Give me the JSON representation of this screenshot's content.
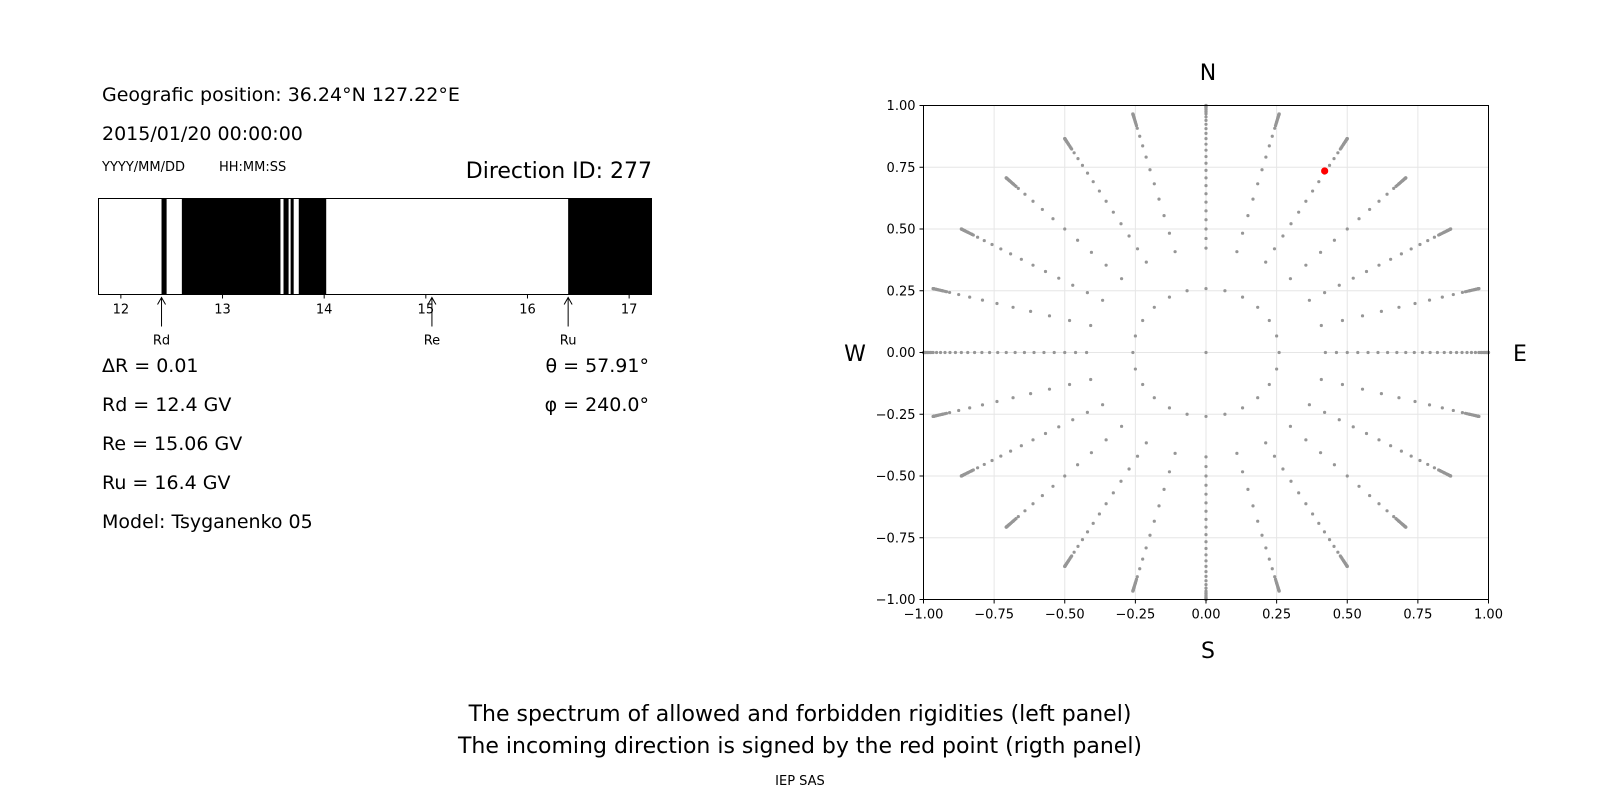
{
  "info": {
    "position": "Geografic position: 36.24°N 127.22°E",
    "datetime": "2015/01/20 00:00:00",
    "date_format": "YYYY/MM/DD",
    "time_format": "HH:MM:SS",
    "direction_id": "Direction ID: 277",
    "delta_r": "ΔR = 0.01",
    "rd": "Rd = 12.4 GV",
    "re": "Re = 15.06 GV",
    "ru": "Ru = 16.4 GV",
    "model": "Model: Tsyganenko 05",
    "theta": "θ = 57.91°",
    "phi": "φ = 240.0°"
  },
  "compass": {
    "n": "N",
    "s": "S",
    "e": "E",
    "w": "W"
  },
  "captions": {
    "line1": "The spectrum of allowed and forbidden rigidities (left panel)",
    "line2": "The incoming direction is signed by the red point (rigth panel)",
    "footer": "IEP SAS"
  },
  "chart_data": [
    {
      "type": "bar",
      "description_kind": "rigidity spectrum",
      "xlim": [
        11.78,
        17.22
      ],
      "xticks": [
        12,
        13,
        14,
        15,
        16,
        17
      ],
      "forbidden_bands": [
        [
          12.4,
          12.45
        ],
        [
          12.6,
          13.57
        ],
        [
          13.6,
          13.65
        ],
        [
          13.67,
          13.7
        ],
        [
          13.75,
          14.02
        ],
        [
          16.4,
          17.22
        ]
      ],
      "markers": [
        {
          "label": "Rd",
          "x": 12.4
        },
        {
          "label": "Re",
          "x": 15.06
        },
        {
          "label": "Ru",
          "x": 16.4
        }
      ],
      "colors": {
        "forbidden": "#000000",
        "allowed": "#ffffff"
      }
    },
    {
      "type": "scatter",
      "xlim": [
        -1.0,
        1.0
      ],
      "ylim": [
        -1.0,
        1.0
      ],
      "xticks": [
        "−1.00",
        "−0.75",
        "−0.50",
        "−0.25",
        "0.00",
        "0.25",
        "0.50",
        "0.75",
        "1.00"
      ],
      "yticks": [
        "1.00",
        "0.75",
        "0.50",
        "0.25",
        "0.00",
        "−0.25",
        "−0.50",
        "−0.75",
        "−1.00"
      ],
      "grid": true,
      "directions": {
        "azimuth_step_deg": 15,
        "zenith_max_deg": 90
      },
      "highlight": {
        "x": 0.42,
        "y": 0.735
      },
      "colors": {
        "points": "#969696",
        "highlight": "#ff0000"
      }
    }
  ]
}
